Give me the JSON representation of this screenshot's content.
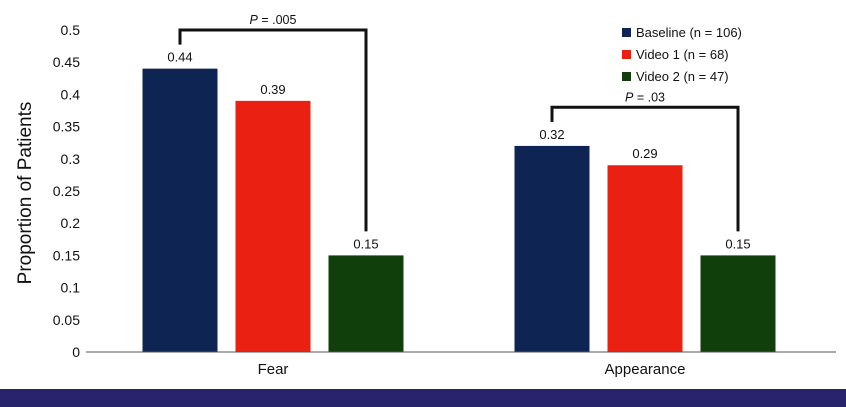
{
  "chart_data": {
    "type": "bar",
    "categories": [
      "Fear",
      "Appearance"
    ],
    "series": [
      {
        "name": "Baseline (n = 106)",
        "values": [
          0.44,
          0.32
        ],
        "color": "#0e2452"
      },
      {
        "name": "Video 1 (n = 68)",
        "values": [
          0.39,
          0.29
        ],
        "color": "#ea2012"
      },
      {
        "name": "Video 2 (n = 47)",
        "values": [
          0.15,
          0.15
        ],
        "color": "#113f0c"
      }
    ],
    "data_labels": [
      [
        "0.44",
        "0.32"
      ],
      [
        "0.39",
        "0.29"
      ],
      [
        "0.15",
        "0.15"
      ]
    ],
    "ylabel": "Proportion of Patients",
    "xlabel": "",
    "ylim": [
      0,
      0.5
    ],
    "yticks": [
      0,
      0.05,
      0.1,
      0.15,
      0.2,
      0.25,
      0.3,
      0.35,
      0.4,
      0.45,
      0.5
    ],
    "ytick_labels": [
      "0",
      "0.05",
      "0.1",
      "0.15",
      "0.2",
      "0.25",
      "0.3",
      "0.35",
      "0.4",
      "0.45",
      "0.5"
    ],
    "grid": false,
    "legend_position": "top-right",
    "annotations": [
      {
        "category": "Fear",
        "from_series": 0,
        "to_series": 2,
        "p_prefix": "P",
        "p_value": " = .005",
        "level": 0.5
      },
      {
        "category": "Appearance",
        "from_series": 0,
        "to_series": 2,
        "p_prefix": "P",
        "p_value": " = .03",
        "level": 0.38
      }
    ]
  },
  "footer_color": "#27246b"
}
